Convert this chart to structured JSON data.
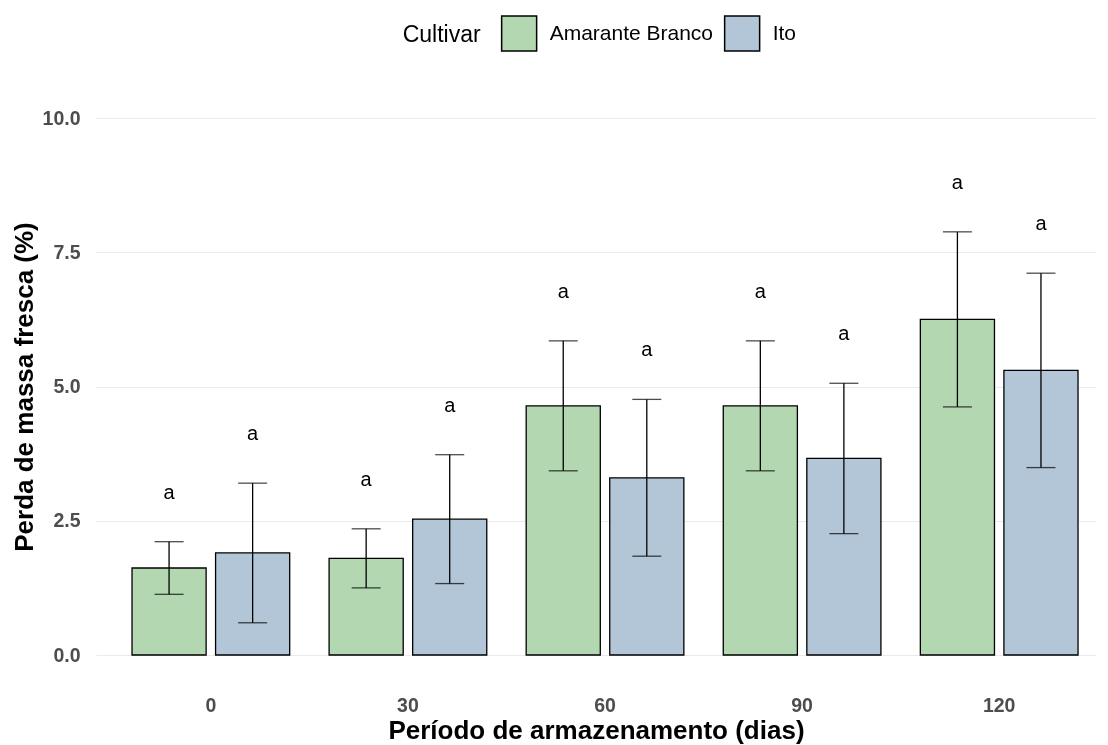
{
  "chart_data": {
    "type": "bar",
    "xlabel": "Período de armazenamento (dias)",
    "ylabel": "Perda de massa fresca (%)",
    "legend_title": "Cultivar",
    "categories": [
      "0",
      "30",
      "60",
      "90",
      "120"
    ],
    "series": [
      {
        "name": "Amarante Branco",
        "color": "#b3d7b0",
        "values": [
          1.62,
          1.8,
          4.64,
          4.64,
          6.25
        ],
        "errors": [
          0.49,
          0.55,
          1.21,
          1.21,
          1.63
        ]
      },
      {
        "name": "Ito",
        "color": "#b2c6d8",
        "values": [
          1.9,
          2.53,
          3.3,
          3.66,
          5.3
        ],
        "errors": [
          1.3,
          1.2,
          1.46,
          1.4,
          1.81
        ]
      }
    ],
    "annotations": [
      "a",
      "a",
      "a",
      "a",
      "a",
      "a",
      "a",
      "a",
      "a",
      "a"
    ],
    "ylim": [
      0,
      10
    ],
    "yticks": [
      {
        "value": 0,
        "label": "0.0"
      },
      2.5,
      {
        "value": 5,
        "label": "5.0"
      },
      7.5,
      {
        "value": 10,
        "label": "10.0"
      }
    ],
    "grid": "y",
    "legend": "top"
  }
}
